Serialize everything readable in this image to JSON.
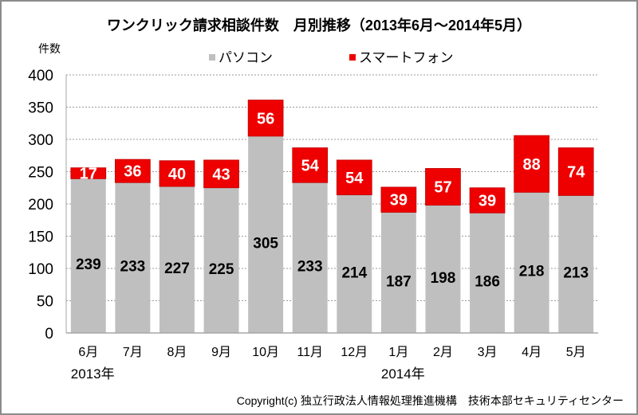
{
  "chart_data": {
    "type": "bar",
    "stacked": true,
    "title": "ワンクリック請求相談件数　月別推移（2013年6月～2014年5月）",
    "ylabel": "件数",
    "xlabel": "",
    "ylim": [
      0,
      400
    ],
    "yticks": [
      0,
      50,
      100,
      150,
      200,
      250,
      300,
      350,
      400
    ],
    "grid": true,
    "legend_position": "top-center",
    "categories": [
      "6月",
      "7月",
      "8月",
      "9月",
      "10月",
      "11月",
      "12月",
      "1月",
      "2月",
      "3月",
      "4月",
      "5月"
    ],
    "year_labels": [
      {
        "label": "2013年",
        "category_index": 0
      },
      {
        "label": "2014年",
        "category_index": 7
      }
    ],
    "series": [
      {
        "name": "パソコン",
        "color": "#bfbfbf",
        "label_color": "#000000",
        "values": [
          239,
          233,
          227,
          225,
          305,
          233,
          214,
          187,
          198,
          186,
          218,
          213
        ]
      },
      {
        "name": "スマートフォン",
        "color": "#ee0000",
        "label_color": "#ffffff",
        "values": [
          17,
          36,
          40,
          43,
          56,
          54,
          54,
          39,
          57,
          39,
          88,
          74
        ]
      }
    ]
  },
  "copyright": "Copyright(c) 独立行政法人情報処理推進機構　技術本部セキュリティセンター"
}
